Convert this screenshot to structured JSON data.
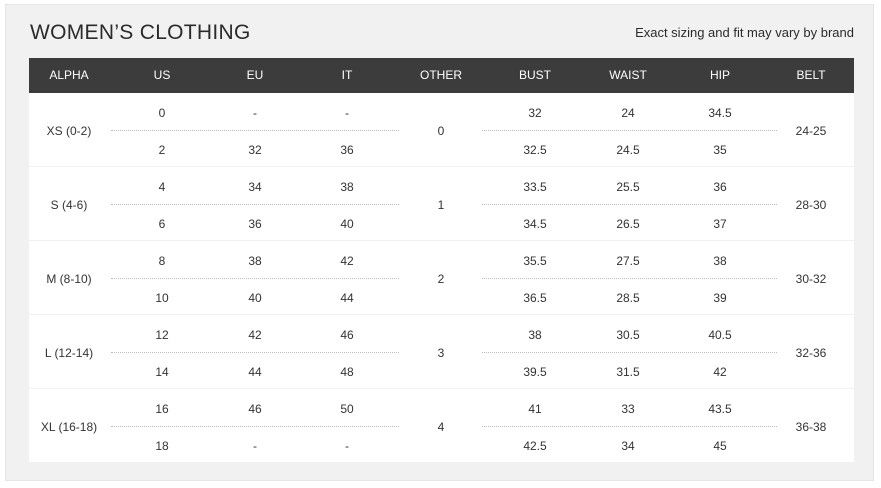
{
  "title": "WOMEN’S CLOTHING",
  "note": "Exact sizing and fit may vary by brand",
  "headers": [
    "ALPHA",
    "US",
    "EU",
    "IT",
    "OTHER",
    "BUST",
    "WAIST",
    "HIP",
    "BELT"
  ],
  "groups": [
    {
      "alpha": "XS (0-2)",
      "other": "0",
      "belt": "24-25",
      "rows": [
        {
          "us": "0",
          "eu": "-",
          "it": "-",
          "bust": "32",
          "waist": "24",
          "hip": "34.5"
        },
        {
          "us": "2",
          "eu": "32",
          "it": "36",
          "bust": "32.5",
          "waist": "24.5",
          "hip": "35"
        }
      ]
    },
    {
      "alpha": "S (4-6)",
      "other": "1",
      "belt": "28-30",
      "rows": [
        {
          "us": "4",
          "eu": "34",
          "it": "38",
          "bust": "33.5",
          "waist": "25.5",
          "hip": "36"
        },
        {
          "us": "6",
          "eu": "36",
          "it": "40",
          "bust": "34.5",
          "waist": "26.5",
          "hip": "37"
        }
      ]
    },
    {
      "alpha": "M (8-10)",
      "other": "2",
      "belt": "30-32",
      "rows": [
        {
          "us": "8",
          "eu": "38",
          "it": "42",
          "bust": "35.5",
          "waist": "27.5",
          "hip": "38"
        },
        {
          "us": "10",
          "eu": "40",
          "it": "44",
          "bust": "36.5",
          "waist": "28.5",
          "hip": "39"
        }
      ]
    },
    {
      "alpha": "L (12-14)",
      "other": "3",
      "belt": "32-36",
      "rows": [
        {
          "us": "12",
          "eu": "42",
          "it": "46",
          "bust": "38",
          "waist": "30.5",
          "hip": "40.5"
        },
        {
          "us": "14",
          "eu": "44",
          "it": "48",
          "bust": "39.5",
          "waist": "31.5",
          "hip": "42"
        }
      ]
    },
    {
      "alpha": "XL (16-18)",
      "other": "4",
      "belt": "36-38",
      "rows": [
        {
          "us": "16",
          "eu": "46",
          "it": "50",
          "bust": "41",
          "waist": "33",
          "hip": "43.5"
        },
        {
          "us": "18",
          "eu": "-",
          "it": "-",
          "bust": "42.5",
          "waist": "34",
          "hip": "45"
        }
      ]
    }
  ]
}
